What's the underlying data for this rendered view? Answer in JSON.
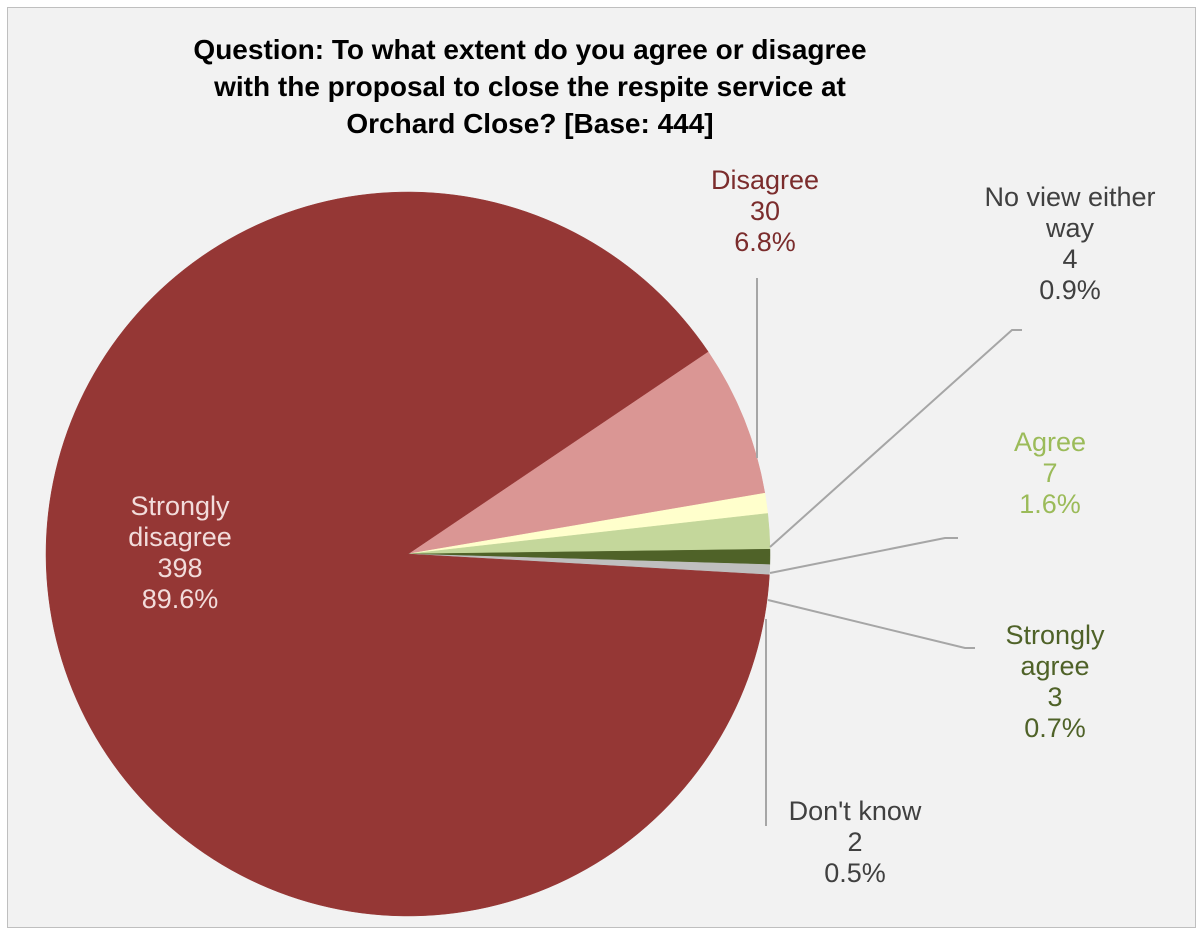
{
  "chart_data": {
    "type": "pie",
    "title_lines": [
      "Question: To what extent do you agree or disagree",
      "with the proposal to close the respite service at",
      "Orchard Close? [Base: 444]"
    ],
    "base": 444,
    "slices": [
      {
        "name": "Disagree",
        "name_lines": [
          "Disagree"
        ],
        "value": 30,
        "percent": "6.8%",
        "color": "#da9694",
        "label_color": "#7b2c2c"
      },
      {
        "name": "No view either way",
        "name_lines": [
          "No view either",
          "way"
        ],
        "value": 4,
        "percent": "0.9%",
        "color": "#ffffcc",
        "label_color": "#404040"
      },
      {
        "name": "Agree",
        "name_lines": [
          "Agree"
        ],
        "value": 7,
        "percent": "1.6%",
        "color": "#c4d79b",
        "label_color": "#9bbb59"
      },
      {
        "name": "Strongly agree",
        "name_lines": [
          "Strongly",
          "agree"
        ],
        "value": 3,
        "percent": "0.7%",
        "color": "#4f6228",
        "label_color": "#4f6228"
      },
      {
        "name": "Don't know",
        "name_lines": [
          "Don't know"
        ],
        "value": 2,
        "percent": "0.5%",
        "color": "#bfbfbf",
        "label_color": "#404040"
      },
      {
        "name": "Strongly disagree",
        "name_lines": [
          "Strongly",
          "disagree"
        ],
        "value": 398,
        "percent": "89.6%",
        "color": "#953735",
        "label_color": "#f2dcdb"
      }
    ],
    "start_angle_deg": 56,
    "direction": "clockwise",
    "legend": "none",
    "label_style": "name, value, percent"
  }
}
